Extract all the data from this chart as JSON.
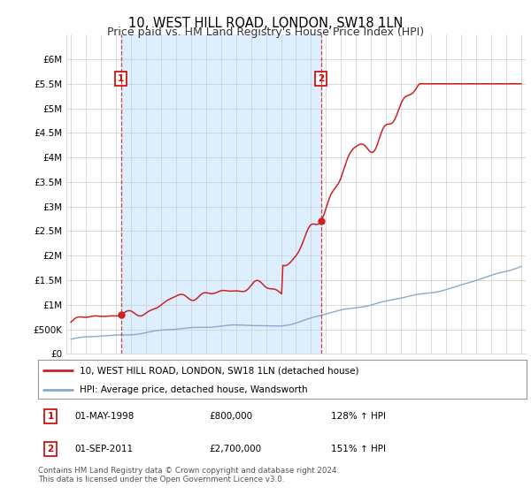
{
  "title": "10, WEST HILL ROAD, LONDON, SW18 1LN",
  "subtitle": "Price paid vs. HM Land Registry's House Price Index (HPI)",
  "title_fontsize": 10.5,
  "subtitle_fontsize": 9,
  "x_start_year": 1995,
  "x_end_year": 2025,
  "y_min": 0,
  "y_max": 6500000,
  "y_ticks": [
    0,
    500000,
    1000000,
    1500000,
    2000000,
    2500000,
    3000000,
    3500000,
    4000000,
    4500000,
    5000000,
    5500000,
    6000000
  ],
  "y_tick_labels": [
    "£0",
    "£500K",
    "£1M",
    "£1.5M",
    "£2M",
    "£2.5M",
    "£3M",
    "£3.5M",
    "£4M",
    "£4.5M",
    "£5M",
    "£5.5M",
    "£6M"
  ],
  "sale1_year": 1998.33,
  "sale1_price": 800000,
  "sale1_label": "1",
  "sale1_date": "01-MAY-1998",
  "sale1_amount": "£800,000",
  "sale1_hpi": "128% ↑ HPI",
  "sale2_year": 2011.67,
  "sale2_price": 2700000,
  "sale2_label": "2",
  "sale2_date": "01-SEP-2011",
  "sale2_amount": "£2,700,000",
  "sale2_hpi": "151% ↑ HPI",
  "red_line_color": "#cc2222",
  "blue_line_color": "#88aacc",
  "vline_color": "#cc2222",
  "shade_color": "#ddeeff",
  "legend_label_red": "10, WEST HILL ROAD, LONDON, SW18 1LN (detached house)",
  "legend_label_blue": "HPI: Average price, detached house, Wandsworth",
  "footer": "Contains HM Land Registry data © Crown copyright and database right 2024.\nThis data is licensed under the Open Government Licence v3.0.",
  "background_color": "#ffffff",
  "grid_color": "#cccccc"
}
